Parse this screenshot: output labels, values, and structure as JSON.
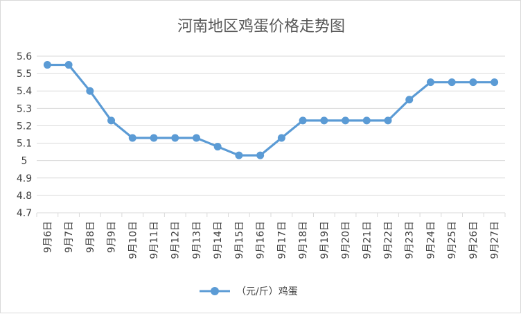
{
  "chart_data": {
    "type": "line",
    "title": "河南地区鸡蛋价格走势图",
    "xlabel": "",
    "ylabel": "",
    "categories": [
      "9月6日",
      "9月7日",
      "9月8日",
      "9月9日",
      "9月10日",
      "9月11日",
      "9月12日",
      "9月13日",
      "9月14日",
      "9月15日",
      "9月16日",
      "9月17日",
      "9月18日",
      "9月19日",
      "9月20日",
      "9月21日",
      "9月22日",
      "9月23日",
      "9月24日",
      "9月25日",
      "9月26日",
      "9月27日"
    ],
    "series": [
      {
        "name": "（元/斤）鸡蛋",
        "values": [
          5.55,
          5.55,
          5.4,
          5.23,
          5.13,
          5.13,
          5.13,
          5.13,
          5.08,
          5.03,
          5.03,
          5.13,
          5.23,
          5.23,
          5.23,
          5.23,
          5.23,
          5.35,
          5.45,
          5.45,
          5.45,
          5.45
        ]
      }
    ],
    "ylim": [
      4.7,
      5.6
    ],
    "yticks": [
      "5.6",
      "5.5",
      "5.4",
      "5.3",
      "5.2",
      "5.1",
      "5",
      "4.9",
      "4.8",
      "4.7"
    ],
    "grid": true,
    "legend": "bottom",
    "colors": {
      "series": "#5b9bd5",
      "grid": "#d9d9d9",
      "text": "#595959"
    }
  }
}
